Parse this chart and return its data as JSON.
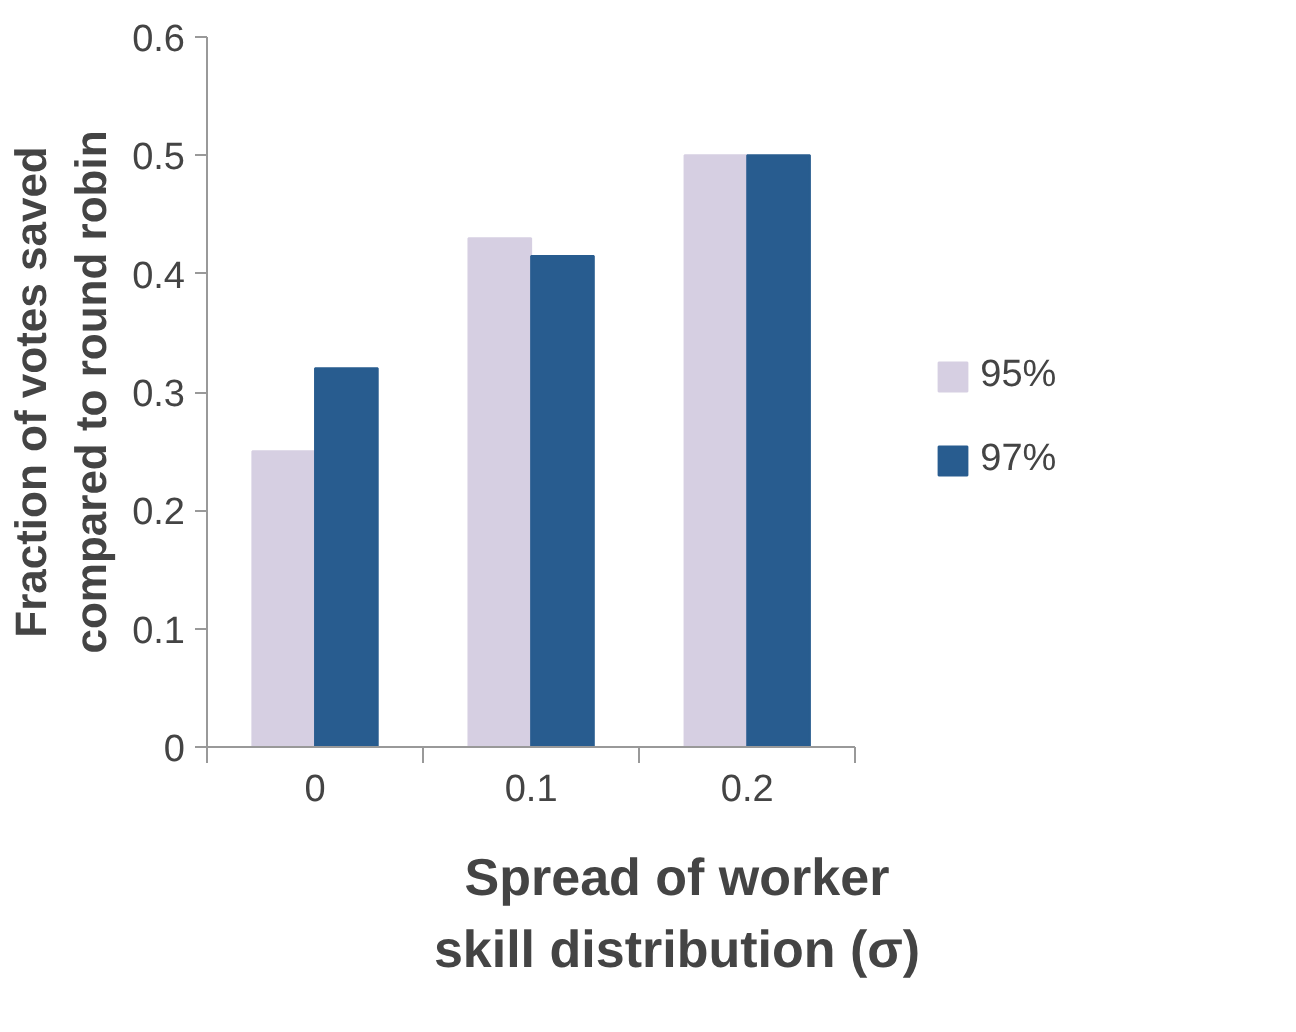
{
  "chart_data": {
    "type": "bar",
    "xlabel": "Spread of worker skill distribution (σ)",
    "ylabel": "Fraction of votes saved compared to round robin",
    "categories": [
      "0",
      "0.1",
      "0.2"
    ],
    "series": [
      {
        "name": "95%",
        "color": "#d6cfe2",
        "values": [
          0.25,
          0.43,
          0.5
        ]
      },
      {
        "name": "97%",
        "color": "#285c8f",
        "values": [
          0.32,
          0.415,
          0.5
        ]
      }
    ],
    "ylim": [
      0,
      0.6
    ],
    "yticks": [
      0,
      0.1,
      0.2,
      0.3,
      0.4,
      0.5,
      0.6
    ],
    "grid": false,
    "legend": "right"
  }
}
